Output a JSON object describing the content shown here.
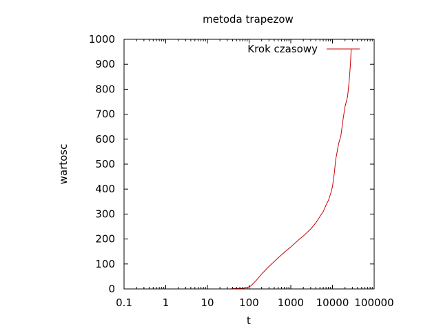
{
  "chart_data": {
    "type": "line",
    "title": "metoda trapezow",
    "xlabel": "t",
    "ylabel": "wartosc",
    "x_scale": "log",
    "xlim": [
      0.1,
      100000
    ],
    "ylim": [
      0,
      1000
    ],
    "x_ticks": [
      "0.1",
      "1",
      "10",
      "100",
      "1000",
      "10000",
      "100000"
    ],
    "y_ticks": [
      "0",
      "100",
      "200",
      "300",
      "400",
      "500",
      "600",
      "700",
      "800",
      "900",
      "1000"
    ],
    "grid": false,
    "legend_position": "top-right",
    "series": [
      {
        "name": "Krok czasowy",
        "color": "#cc0000",
        "x": [
          35,
          50,
          70,
          90,
          110,
          150,
          200,
          300,
          500,
          800,
          1000,
          1500,
          2000,
          3000,
          4000,
          5000,
          6000,
          7000,
          8000,
          9000,
          10000,
          11000,
          12000,
          14000,
          16000,
          18000,
          20000,
          23000,
          25000,
          27000,
          28000
        ],
        "y": [
          0,
          2,
          2,
          5,
          12,
          35,
          60,
          90,
          125,
          155,
          168,
          195,
          212,
          240,
          265,
          290,
          310,
          335,
          355,
          380,
          410,
          460,
          520,
          580,
          615,
          680,
          730,
          770,
          830,
          900,
          960
        ]
      }
    ]
  }
}
